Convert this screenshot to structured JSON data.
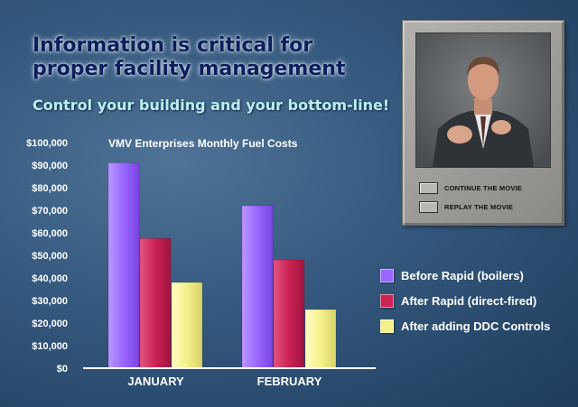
{
  "headline": {
    "line1": "Information is critical for",
    "line2": "proper facility management"
  },
  "subheadline": "Control your building and your bottom-line!",
  "video_panel": {
    "buttons": [
      {
        "label": "CONTINUE THE MOVIE"
      },
      {
        "label": "REPLAY THE MOVIE"
      }
    ]
  },
  "colors": {
    "before_rapid": "#9966ff",
    "after_rapid": "#cc2255",
    "after_ddc": "#f4f08a"
  },
  "chart_data": {
    "type": "bar",
    "title": "VMV Enterprises Monthly Fuel Costs",
    "categories": [
      "JANUARY",
      "FEBRUARY"
    ],
    "series": [
      {
        "name": "Before Rapid (boilers)",
        "values": [
          91000,
          72000
        ]
      },
      {
        "name": "After Rapid (direct-fired)",
        "values": [
          57500,
          48000
        ]
      },
      {
        "name": "After adding DDC Controls",
        "values": [
          38000,
          26000
        ]
      }
    ],
    "ylim": [
      0,
      100000
    ],
    "yticks": [
      "$0",
      "$10,000",
      "$20,000",
      "$30,000",
      "$40,000",
      "$50,000",
      "$60,000",
      "$70,000",
      "$80,000",
      "$90,000",
      "$100,000"
    ],
    "xlabel": "",
    "ylabel": "",
    "grid": false,
    "legend": "right"
  }
}
